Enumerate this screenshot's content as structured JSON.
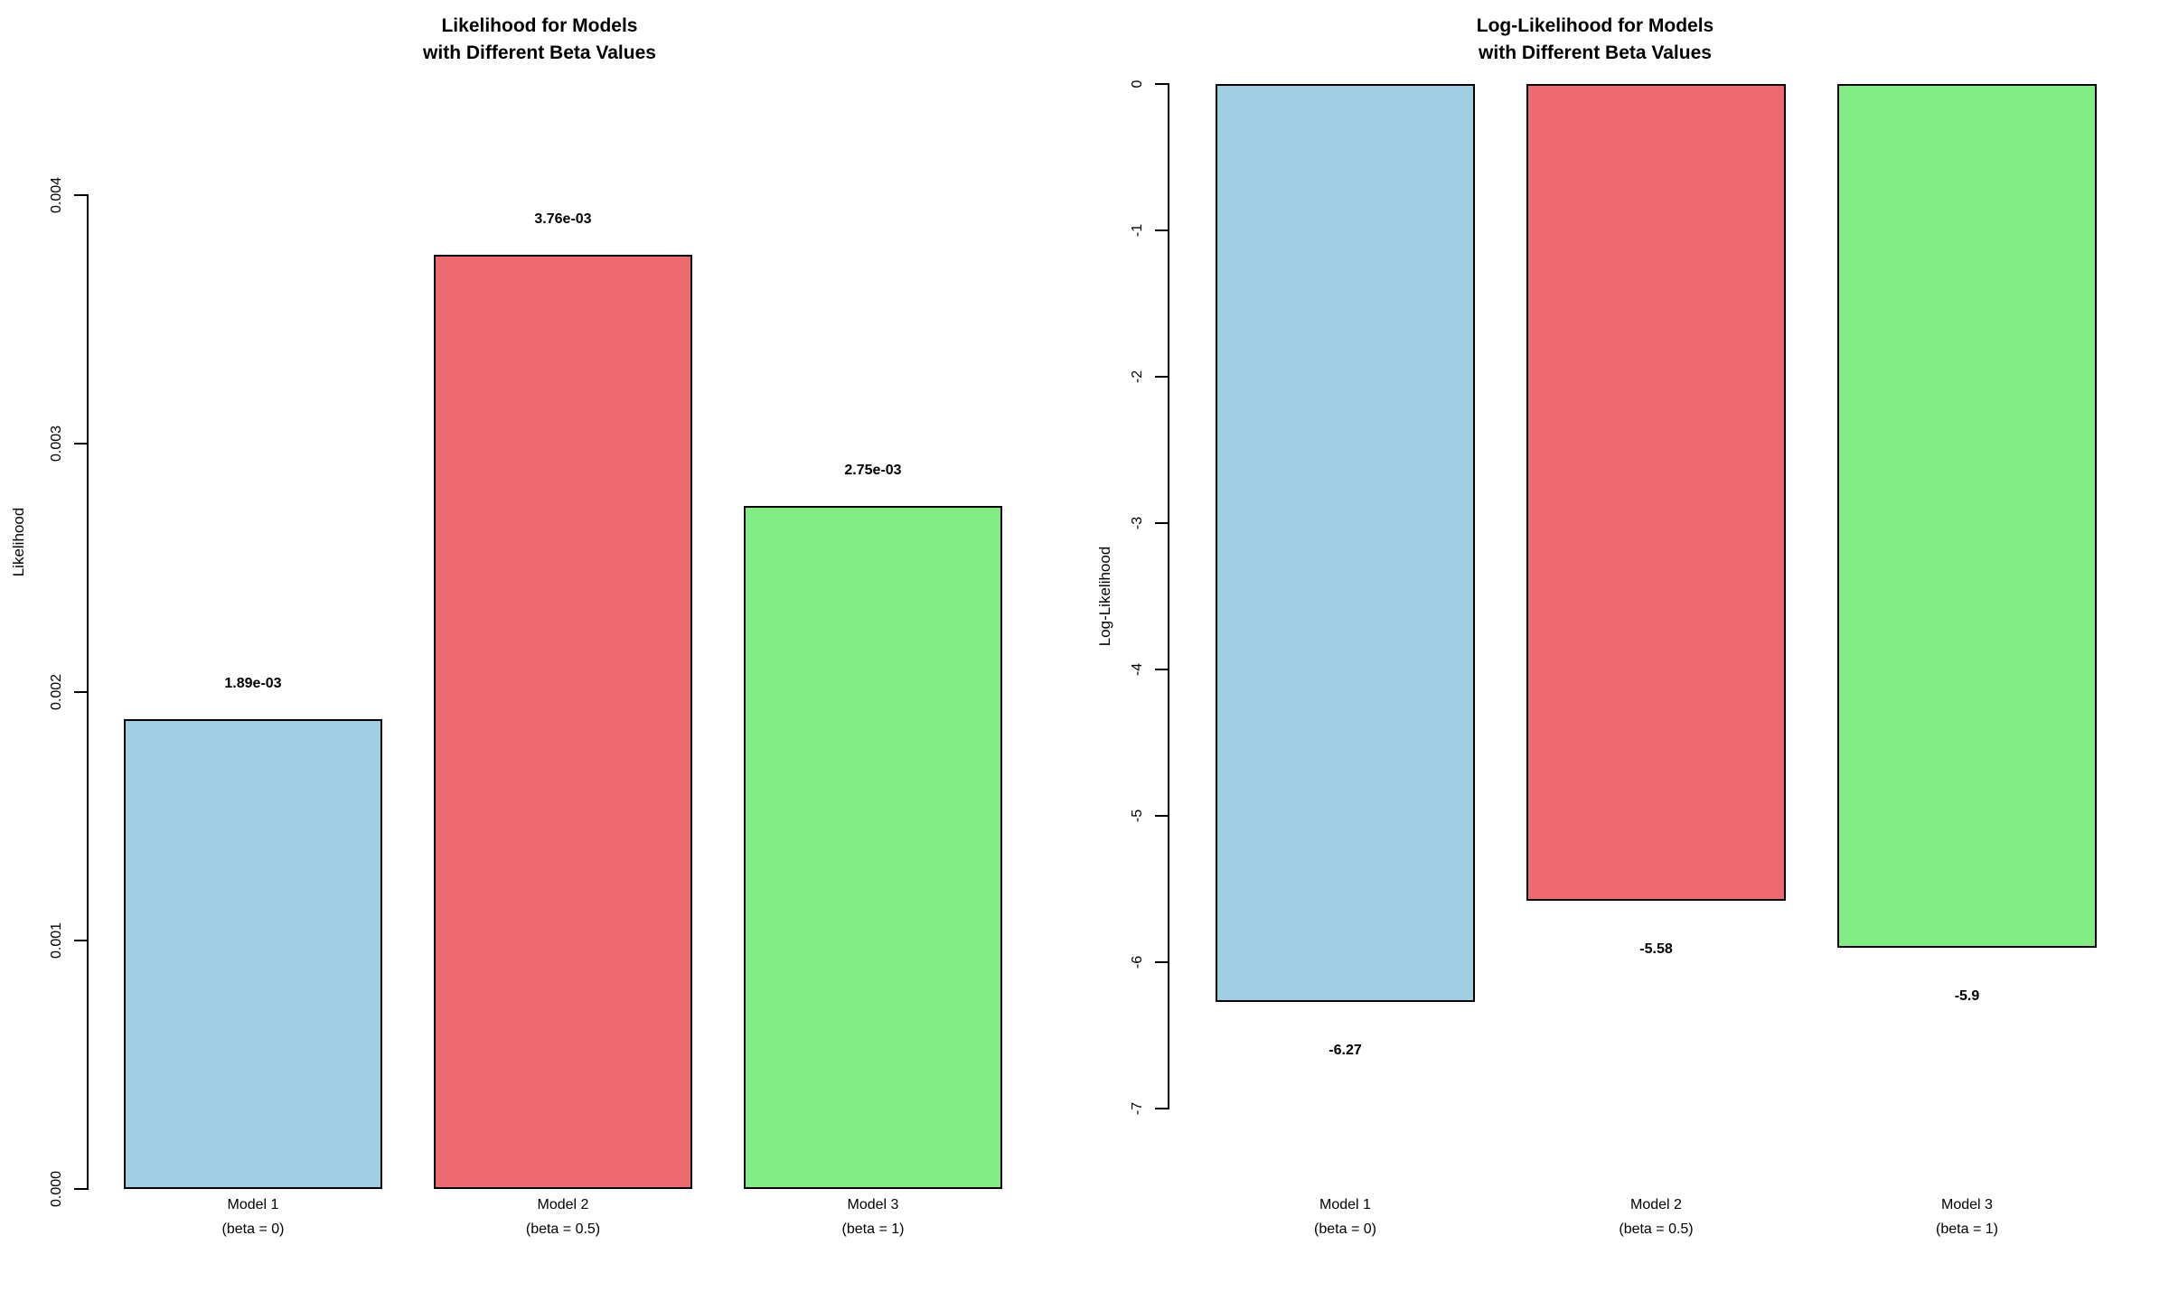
{
  "page": {
    "background_color": "#ffffff",
    "text_color": "#000000"
  },
  "chart_data": [
    {
      "type": "bar",
      "title_lines": [
        "Likelihood for Models",
        "with Different Beta Values"
      ],
      "ylabel": "Likelihood",
      "xlabel": "",
      "categories": [
        [
          "Model 1",
          "(beta = 0)"
        ],
        [
          "Model 2",
          "(beta = 0.5)"
        ],
        [
          "Model 3",
          "(beta = 1)"
        ]
      ],
      "values": [
        0.00189,
        0.00376,
        0.00275
      ],
      "value_labels": [
        "1.89e-03",
        "3.76e-03",
        "2.75e-03"
      ],
      "bar_colors": [
        "#A0CFE3",
        "#EC6A70",
        "#81EB84"
      ],
      "bar_border_color": "#000000",
      "ylim": [
        0,
        0.004
      ],
      "yticks": [
        0,
        0.001,
        0.002,
        0.003,
        0.004
      ],
      "ytick_labels": [
        "0.000",
        "0.001",
        "0.002",
        "0.003",
        "0.004"
      ],
      "grid": false,
      "legend": null
    },
    {
      "type": "bar",
      "title_lines": [
        "Log-Likelihood for Models",
        "with Different Beta Values"
      ],
      "ylabel": "Log-Likelihood",
      "xlabel": "",
      "categories": [
        [
          "Model 1",
          "(beta = 0)"
        ],
        [
          "Model 2",
          "(beta = 0.5)"
        ],
        [
          "Model 3",
          "(beta = 1)"
        ]
      ],
      "values": [
        -6.27,
        -5.58,
        -5.9
      ],
      "value_labels": [
        "-6.27",
        "-5.58",
        "-5.9"
      ],
      "bar_colors": [
        "#A0CFE3",
        "#EC6A70",
        "#81EB84"
      ],
      "bar_border_color": "#000000",
      "ylim": [
        -7,
        0
      ],
      "yticks": [
        0,
        -1,
        -2,
        -3,
        -4,
        -5,
        -6,
        -7
      ],
      "ytick_labels": [
        "0",
        "-1",
        "-2",
        "-3",
        "-4",
        "-5",
        "-6",
        "-7"
      ],
      "grid": false,
      "legend": null
    }
  ]
}
